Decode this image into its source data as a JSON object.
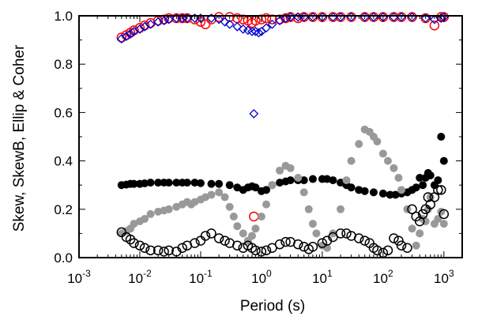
{
  "chart_data": {
    "type": "scatter",
    "title": "",
    "xlabel": "Period (s)",
    "ylabel": "Skew, SkewB, Ellip & Coher",
    "xscale": "log",
    "xlim": [
      0.001,
      2000
    ],
    "ylim": [
      0,
      1
    ],
    "x_tick_labels": [
      {
        "base": "10",
        "exp": "-3"
      },
      {
        "base": "10",
        "exp": "-2"
      },
      {
        "base": "10",
        "exp": "-1"
      },
      {
        "base": "10",
        "exp": "0"
      },
      {
        "base": "10",
        "exp": "1"
      },
      {
        "base": "10",
        "exp": "2"
      },
      {
        "base": "10",
        "exp": "3"
      }
    ],
    "y_tick_labels": [
      "0.0",
      "0.2",
      "0.4",
      "0.6",
      "0.8",
      "1.0"
    ],
    "grid": false,
    "legend": "none",
    "series": [
      {
        "marker": "open-circle",
        "color": "#ff0000",
        "points": [
          [
            0.005,
            0.91
          ],
          [
            0.006,
            0.92
          ],
          [
            0.007,
            0.93
          ],
          [
            0.008,
            0.94
          ],
          [
            0.01,
            0.95
          ],
          [
            0.012,
            0.96
          ],
          [
            0.015,
            0.97
          ],
          [
            0.02,
            0.98
          ],
          [
            0.025,
            0.985
          ],
          [
            0.03,
            0.99
          ],
          [
            0.04,
            0.99
          ],
          [
            0.05,
            0.99
          ],
          [
            0.06,
            0.99
          ],
          [
            0.08,
            0.985
          ],
          [
            0.1,
            0.975
          ],
          [
            0.12,
            0.965
          ],
          [
            0.15,
            0.985
          ],
          [
            0.2,
            0.995
          ],
          [
            0.3,
            0.995
          ],
          [
            0.4,
            0.99
          ],
          [
            0.5,
            0.985
          ],
          [
            0.6,
            0.98
          ],
          [
            0.7,
            0.97
          ],
          [
            0.75,
            0.17
          ],
          [
            0.8,
            0.98
          ],
          [
            1,
            0.985
          ],
          [
            1.2,
            0.99
          ],
          [
            1.5,
            0.985
          ],
          [
            2,
            0.985
          ],
          [
            2.5,
            0.99
          ],
          [
            3,
            0.995
          ],
          [
            4,
            0.99
          ],
          [
            5,
            0.995
          ],
          [
            7,
            0.995
          ],
          [
            10,
            0.995
          ],
          [
            15,
            0.995
          ],
          [
            20,
            0.995
          ],
          [
            30,
            0.995
          ],
          [
            50,
            0.995
          ],
          [
            70,
            0.995
          ],
          [
            100,
            0.995
          ],
          [
            150,
            0.995
          ],
          [
            200,
            0.995
          ],
          [
            300,
            0.995
          ],
          [
            500,
            0.99
          ],
          [
            700,
            0.96
          ],
          [
            900,
            0.995
          ],
          [
            1000,
            0.995
          ]
        ]
      },
      {
        "marker": "open-diamond",
        "color": "#0000cc",
        "points": [
          [
            0.005,
            0.905
          ],
          [
            0.006,
            0.915
          ],
          [
            0.007,
            0.925
          ],
          [
            0.008,
            0.935
          ],
          [
            0.01,
            0.945
          ],
          [
            0.012,
            0.955
          ],
          [
            0.015,
            0.965
          ],
          [
            0.02,
            0.975
          ],
          [
            0.025,
            0.98
          ],
          [
            0.03,
            0.985
          ],
          [
            0.04,
            0.99
          ],
          [
            0.05,
            0.99
          ],
          [
            0.06,
            0.99
          ],
          [
            0.08,
            0.99
          ],
          [
            0.1,
            0.99
          ],
          [
            0.15,
            0.99
          ],
          [
            0.2,
            0.985
          ],
          [
            0.25,
            0.975
          ],
          [
            0.3,
            0.965
          ],
          [
            0.4,
            0.955
          ],
          [
            0.5,
            0.945
          ],
          [
            0.6,
            0.94
          ],
          [
            0.7,
            0.935
          ],
          [
            0.75,
            0.595
          ],
          [
            0.8,
            0.935
          ],
          [
            0.9,
            0.93
          ],
          [
            1,
            0.935
          ],
          [
            1.2,
            0.95
          ],
          [
            1.5,
            0.965
          ],
          [
            2,
            0.98
          ],
          [
            2.5,
            0.99
          ],
          [
            3,
            0.995
          ],
          [
            4,
            0.995
          ],
          [
            5,
            0.995
          ],
          [
            7,
            0.995
          ],
          [
            10,
            0.995
          ],
          [
            15,
            0.995
          ],
          [
            20,
            0.995
          ],
          [
            30,
            0.995
          ],
          [
            50,
            0.995
          ],
          [
            70,
            0.995
          ],
          [
            100,
            0.995
          ],
          [
            150,
            0.995
          ],
          [
            200,
            0.995
          ],
          [
            300,
            0.995
          ],
          [
            500,
            0.99
          ],
          [
            700,
            0.985
          ],
          [
            900,
            0.99
          ],
          [
            1000,
            0.995
          ]
        ]
      },
      {
        "marker": "filled-circle",
        "color": "#000000",
        "points": [
          [
            0.005,
            0.3
          ],
          [
            0.006,
            0.302
          ],
          [
            0.007,
            0.305
          ],
          [
            0.008,
            0.305
          ],
          [
            0.01,
            0.305
          ],
          [
            0.012,
            0.307
          ],
          [
            0.015,
            0.31
          ],
          [
            0.02,
            0.31
          ],
          [
            0.025,
            0.31
          ],
          [
            0.03,
            0.31
          ],
          [
            0.04,
            0.31
          ],
          [
            0.05,
            0.31
          ],
          [
            0.06,
            0.31
          ],
          [
            0.08,
            0.31
          ],
          [
            0.1,
            0.308
          ],
          [
            0.15,
            0.305
          ],
          [
            0.2,
            0.305
          ],
          [
            0.3,
            0.3
          ],
          [
            0.4,
            0.29
          ],
          [
            0.5,
            0.28
          ],
          [
            0.6,
            0.29
          ],
          [
            0.7,
            0.295
          ],
          [
            0.8,
            0.29
          ],
          [
            1,
            0.275
          ],
          [
            1.2,
            0.28
          ],
          [
            1.5,
            0.3
          ],
          [
            2,
            0.31
          ],
          [
            2.5,
            0.315
          ],
          [
            3,
            0.32
          ],
          [
            4,
            0.32
          ],
          [
            5,
            0.32
          ],
          [
            7,
            0.325
          ],
          [
            10,
            0.325
          ],
          [
            12,
            0.325
          ],
          [
            15,
            0.32
          ],
          [
            20,
            0.31
          ],
          [
            25,
            0.3
          ],
          [
            30,
            0.29
          ],
          [
            40,
            0.28
          ],
          [
            50,
            0.275
          ],
          [
            70,
            0.27
          ],
          [
            100,
            0.265
          ],
          [
            130,
            0.26
          ],
          [
            160,
            0.26
          ],
          [
            200,
            0.265
          ],
          [
            250,
            0.27
          ],
          [
            300,
            0.28
          ],
          [
            350,
            0.29
          ],
          [
            400,
            0.33
          ],
          [
            450,
            0.3
          ],
          [
            500,
            0.33
          ],
          [
            550,
            0.35
          ],
          [
            600,
            0.34
          ],
          [
            700,
            0.3
          ],
          [
            800,
            0.32
          ],
          [
            900,
            0.5
          ],
          [
            1000,
            0.4
          ]
        ]
      },
      {
        "marker": "filled-circle",
        "color": "#999999",
        "points": [
          [
            0.005,
            0.1
          ],
          [
            0.006,
            0.11
          ],
          [
            0.007,
            0.12
          ],
          [
            0.008,
            0.14
          ],
          [
            0.01,
            0.15
          ],
          [
            0.012,
            0.16
          ],
          [
            0.015,
            0.18
          ],
          [
            0.02,
            0.19
          ],
          [
            0.025,
            0.195
          ],
          [
            0.03,
            0.2
          ],
          [
            0.04,
            0.21
          ],
          [
            0.05,
            0.22
          ],
          [
            0.06,
            0.23
          ],
          [
            0.07,
            0.22
          ],
          [
            0.08,
            0.23
          ],
          [
            0.1,
            0.24
          ],
          [
            0.12,
            0.25
          ],
          [
            0.15,
            0.26
          ],
          [
            0.2,
            0.27
          ],
          [
            0.25,
            0.25
          ],
          [
            0.3,
            0.21
          ],
          [
            0.35,
            0.17
          ],
          [
            0.4,
            0.13
          ],
          [
            0.5,
            0.1
          ],
          [
            0.6,
            0.07
          ],
          [
            0.7,
            0.09
          ],
          [
            0.8,
            0.12
          ],
          [
            1,
            0.17
          ],
          [
            1.2,
            0.22
          ],
          [
            1.5,
            0.3
          ],
          [
            2,
            0.36
          ],
          [
            2.5,
            0.38
          ],
          [
            3,
            0.37
          ],
          [
            4,
            0.33
          ],
          [
            5,
            0.27
          ],
          [
            6,
            0.2
          ],
          [
            7,
            0.14
          ],
          [
            8,
            0.1
          ],
          [
            10,
            0.05
          ],
          [
            12,
            0.04
          ],
          [
            15,
            0.1
          ],
          [
            20,
            0.2
          ],
          [
            25,
            0.32
          ],
          [
            30,
            0.4
          ],
          [
            40,
            0.47
          ],
          [
            50,
            0.53
          ],
          [
            60,
            0.52
          ],
          [
            70,
            0.5
          ],
          [
            80,
            0.48
          ],
          [
            100,
            0.43
          ],
          [
            120,
            0.4
          ],
          [
            150,
            0.37
          ],
          [
            180,
            0.33
          ],
          [
            200,
            0.28
          ],
          [
            250,
            0.2
          ],
          [
            300,
            0.12
          ],
          [
            350,
            0.05
          ],
          [
            400,
            0.1
          ],
          [
            450,
            0.16
          ],
          [
            500,
            0.15
          ],
          [
            550,
            0.2
          ],
          [
            600,
            0.25
          ],
          [
            700,
            0.14
          ],
          [
            800,
            0.16
          ],
          [
            900,
            0.19
          ],
          [
            1000,
            0.14
          ]
        ]
      },
      {
        "marker": "open-circle",
        "color": "#000000",
        "points": [
          [
            0.005,
            0.105
          ],
          [
            0.006,
            0.085
          ],
          [
            0.007,
            0.075
          ],
          [
            0.008,
            0.06
          ],
          [
            0.01,
            0.05
          ],
          [
            0.012,
            0.04
          ],
          [
            0.015,
            0.03
          ],
          [
            0.02,
            0.03
          ],
          [
            0.025,
            0.025
          ],
          [
            0.03,
            0.03
          ],
          [
            0.04,
            0.025
          ],
          [
            0.05,
            0.04
          ],
          [
            0.06,
            0.05
          ],
          [
            0.08,
            0.06
          ],
          [
            0.1,
            0.07
          ],
          [
            0.12,
            0.09
          ],
          [
            0.15,
            0.1
          ],
          [
            0.2,
            0.08
          ],
          [
            0.25,
            0.07
          ],
          [
            0.3,
            0.06
          ],
          [
            0.4,
            0.05
          ],
          [
            0.5,
            0.04
          ],
          [
            0.6,
            0.05
          ],
          [
            0.7,
            0.04
          ],
          [
            0.8,
            0.03
          ],
          [
            1,
            0.025
          ],
          [
            1.2,
            0.03
          ],
          [
            1.5,
            0.04
          ],
          [
            2,
            0.055
          ],
          [
            2.5,
            0.065
          ],
          [
            3,
            0.065
          ],
          [
            4,
            0.055
          ],
          [
            5,
            0.045
          ],
          [
            6,
            0.035
          ],
          [
            7,
            0.045
          ],
          [
            10,
            0.06
          ],
          [
            12,
            0.07
          ],
          [
            15,
            0.085
          ],
          [
            20,
            0.1
          ],
          [
            25,
            0.1
          ],
          [
            30,
            0.09
          ],
          [
            40,
            0.08
          ],
          [
            50,
            0.07
          ],
          [
            60,
            0.06
          ],
          [
            70,
            0.04
          ],
          [
            80,
            0.03
          ],
          [
            100,
            0.02
          ],
          [
            120,
            0.03
          ],
          [
            150,
            0.08
          ],
          [
            180,
            0.07
          ],
          [
            200,
            0.05
          ],
          [
            250,
            0.04
          ],
          [
            300,
            0.2
          ],
          [
            350,
            0.17
          ],
          [
            400,
            0.15
          ],
          [
            450,
            0.18
          ],
          [
            500,
            0.2
          ],
          [
            550,
            0.25
          ],
          [
            600,
            0.22
          ],
          [
            700,
            0.25
          ],
          [
            800,
            0.28
          ],
          [
            900,
            0.28
          ],
          [
            1000,
            0.18
          ]
        ]
      }
    ]
  }
}
